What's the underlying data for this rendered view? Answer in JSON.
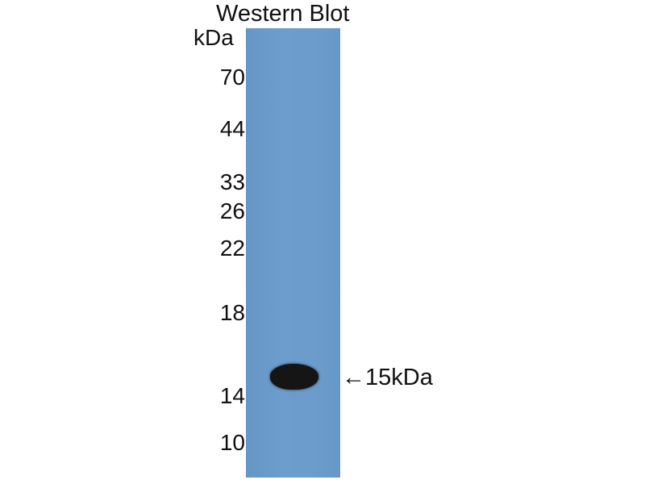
{
  "title": "Western Blot",
  "unit": "kDa",
  "markers": [
    "70",
    "44",
    "33",
    "26",
    "22",
    "18",
    "14",
    "10"
  ],
  "band_label": "←15kDa",
  "colors": {
    "membrane": "#6a9bcb",
    "band": "#151515"
  }
}
